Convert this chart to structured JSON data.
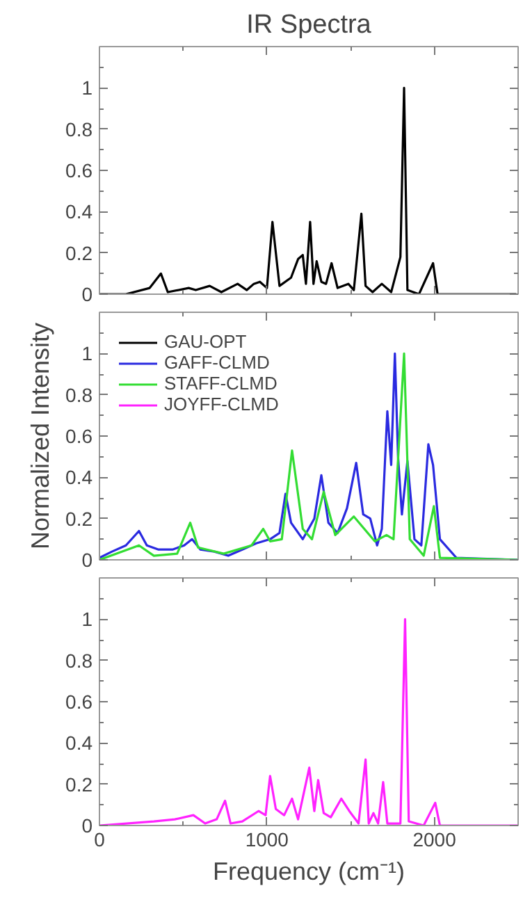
{
  "chart_data": [
    {
      "type": "line",
      "title": "IR Spectra",
      "xlim": [
        0,
        2500
      ],
      "ylim": [
        0,
        1.2
      ],
      "xticks": [
        0,
        1000,
        2000
      ],
      "yticks": [
        0,
        0.2,
        0.4,
        0.6,
        0.8,
        1
      ],
      "tick_labels": "y",
      "grid": false,
      "marker": "none",
      "line_style": "solid",
      "series": [
        {
          "name": "GAU-OPT",
          "color": "#000000",
          "x": [
            0,
            158,
            300,
            367,
            408,
            533,
            575,
            658,
            728,
            825,
            880,
            922,
            958,
            1000,
            1033,
            1075,
            1144,
            1186,
            1214,
            1233,
            1258,
            1278,
            1297,
            1325,
            1353,
            1386,
            1422,
            1486,
            1519,
            1564,
            1589,
            1631,
            1686,
            1742,
            1797,
            1819,
            1839,
            1908,
            1992,
            2019,
            2489
          ],
          "values": [
            0,
            0,
            0.03,
            0.1,
            0.01,
            0.03,
            0.02,
            0.04,
            0.01,
            0.05,
            0.02,
            0.05,
            0.06,
            0.03,
            0.35,
            0.04,
            0.08,
            0.17,
            0.19,
            0.05,
            0.35,
            0.05,
            0.16,
            0.06,
            0.05,
            0.15,
            0.03,
            0.05,
            0.02,
            0.39,
            0.04,
            0.01,
            0.05,
            0.01,
            0.18,
            1.0,
            0.02,
            0,
            0.15,
            0,
            0
          ]
        }
      ]
    },
    {
      "type": "line",
      "ylabel": "Normalized Intensity",
      "xlim": [
        0,
        2500
      ],
      "ylim": [
        0,
        1.2
      ],
      "xticks": [
        0,
        1000,
        2000
      ],
      "yticks": [
        0,
        0.2,
        0.4,
        0.6,
        0.8,
        1
      ],
      "tick_labels": "y",
      "grid": false,
      "legend": "top left",
      "marker": "none",
      "line_style": "solid",
      "series": [
        {
          "name": "GAFF-CLMD",
          "color": "#2a2ae0",
          "x": [
            0,
            75,
            158,
            236,
            283,
            353,
            436,
            506,
            553,
            603,
            686,
            769,
            853,
            936,
            1019,
            1075,
            1111,
            1144,
            1214,
            1283,
            1325,
            1367,
            1422,
            1478,
            1533,
            1575,
            1617,
            1658,
            1686,
            1719,
            1742,
            1764,
            1783,
            1806,
            1839,
            1881,
            1922,
            1964,
            1992,
            2033,
            2131,
            2500
          ],
          "values": [
            0.01,
            0.04,
            0.07,
            0.14,
            0.07,
            0.05,
            0.05,
            0.07,
            0.1,
            0.05,
            0.04,
            0.02,
            0.05,
            0.08,
            0.1,
            0.13,
            0.32,
            0.18,
            0.1,
            0.2,
            0.41,
            0.18,
            0.13,
            0.25,
            0.47,
            0.22,
            0.2,
            0.07,
            0.15,
            0.72,
            0.46,
            1.0,
            0.5,
            0.22,
            0.48,
            0.1,
            0.07,
            0.56,
            0.46,
            0.1,
            0.01,
            0
          ]
        },
        {
          "name": "STAFF-CLMD",
          "color": "#33dd33",
          "x": [
            0,
            236,
            325,
            464,
            542,
            589,
            742,
            908,
            978,
            1019,
            1089,
            1150,
            1214,
            1269,
            1339,
            1408,
            1519,
            1644,
            1714,
            1756,
            1819,
            1853,
            1936,
            1997,
            2033,
            2500
          ],
          "values": [
            0,
            0.07,
            0.02,
            0.03,
            0.18,
            0.06,
            0.03,
            0.07,
            0.15,
            0.09,
            0.1,
            0.53,
            0.15,
            0.1,
            0.33,
            0.12,
            0.21,
            0.09,
            0.12,
            0.1,
            1.0,
            0.1,
            0.02,
            0.26,
            0.01,
            0
          ]
        }
      ]
    },
    {
      "type": "line",
      "xlabel": "Frequency (cm⁻¹)",
      "xlim": [
        0,
        2500
      ],
      "ylim": [
        0,
        1.2
      ],
      "xticks": [
        0,
        1000,
        2000
      ],
      "yticks": [
        0,
        0.2,
        0.4,
        0.6,
        0.8,
        1
      ],
      "grid": false,
      "marker": "none",
      "line_style": "solid",
      "series": [
        {
          "name": "JOYFF-CLMD",
          "color": "#ff22ff",
          "x": [
            0,
            325,
            450,
            561,
            631,
            700,
            750,
            783,
            853,
            950,
            992,
            1019,
            1053,
            1103,
            1150,
            1186,
            1253,
            1283,
            1306,
            1339,
            1381,
            1444,
            1492,
            1547,
            1589,
            1608,
            1636,
            1664,
            1694,
            1719,
            1797,
            1825,
            1847,
            1936,
            2005,
            2033,
            2500
          ],
          "values": [
            0,
            0.02,
            0.03,
            0.05,
            0.01,
            0.03,
            0.12,
            0.01,
            0.02,
            0.07,
            0.05,
            0.24,
            0.08,
            0.05,
            0.13,
            0.03,
            0.28,
            0.07,
            0.22,
            0.06,
            0.04,
            0.13,
            0.07,
            0.01,
            0.32,
            0.01,
            0.06,
            0.01,
            0.21,
            0.01,
            0.01,
            1.0,
            0.02,
            0,
            0.11,
            0,
            0
          ]
        }
      ]
    }
  ]
}
